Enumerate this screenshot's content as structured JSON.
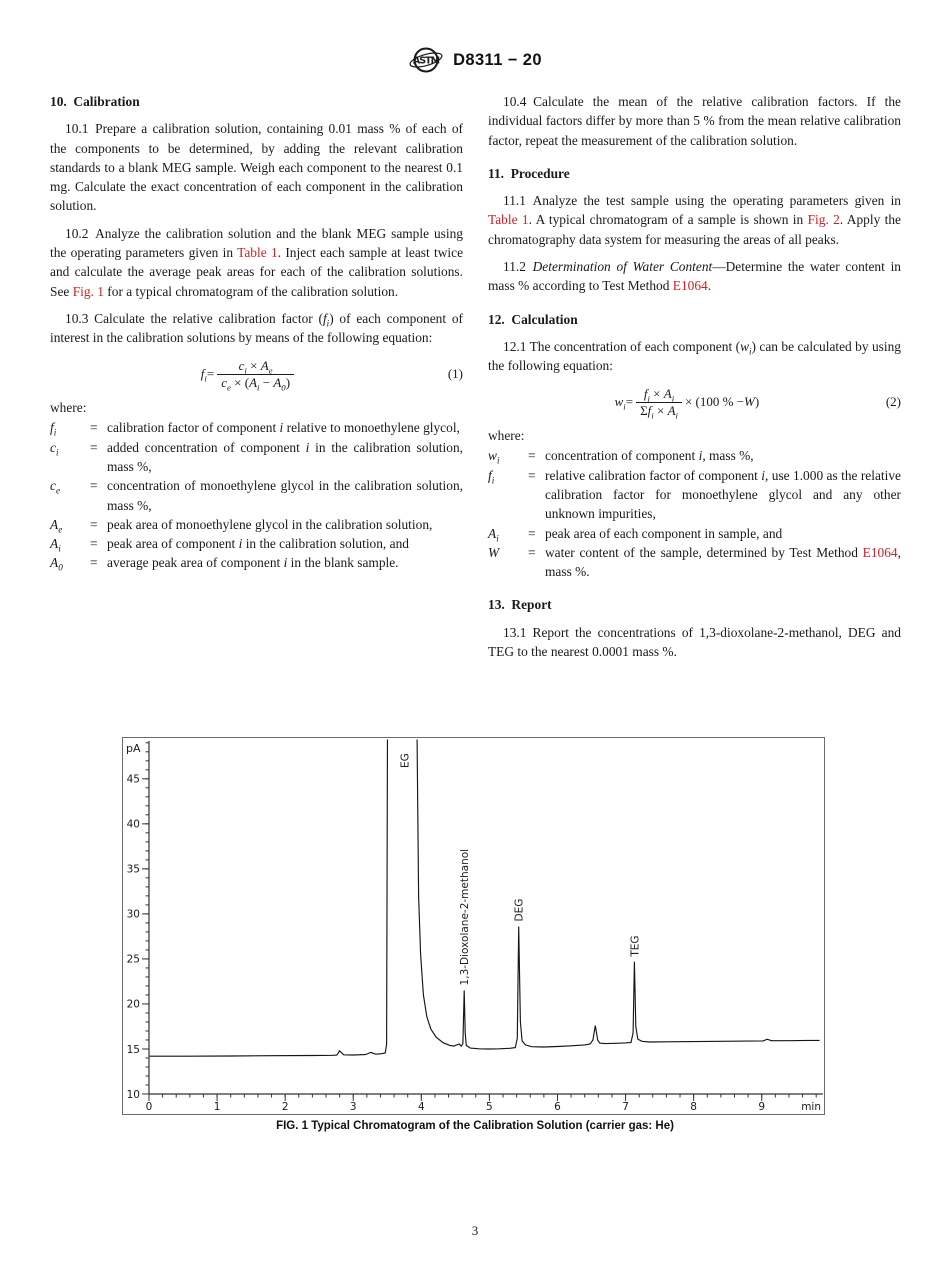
{
  "accent_color": "#cc2128",
  "header": {
    "logo_text": "ASTM",
    "doc_code": "D8311 − 20"
  },
  "footer": {
    "page_number": "3"
  },
  "columns": {
    "left": [
      {
        "type": "heading",
        "first": true,
        "text": "10. Calibration"
      },
      {
        "type": "para",
        "segments": [
          {
            "t": "10.1 Prepare a calibration solution, containing 0.01 mass % of each of the components to be determined, by adding the relevant calibration standards to a blank MEG sample. Weigh each component to the nearest 0.1 mg. Calculate the exact concentration of each component in the calibration solution."
          }
        ]
      },
      {
        "type": "para",
        "segments": [
          {
            "t": "10.2 Analyze the calibration solution and the blank MEG sample using the operating parameters given in "
          },
          {
            "t": "Table 1",
            "l": true
          },
          {
            "t": ". Inject each sample at least twice and calculate the average peak areas for each of the calibration solutions. See "
          },
          {
            "t": "Fig. 1",
            "l": true
          },
          {
            "t": " for a typical chromatogram of the calibration solution."
          }
        ]
      },
      {
        "type": "para",
        "segments": [
          {
            "t": "10.3 Calculate the relative calibration factor ("
          },
          {
            "t": "f",
            "i": true,
            "sub": "i"
          },
          {
            "t": ") of each component of interest in the calibration solutions by means of the following equation:"
          }
        ]
      },
      {
        "type": "equation",
        "label": "(1)",
        "lhs": [
          {
            "t": "f",
            "i": true,
            "sub": "i"
          },
          {
            "t": " = "
          }
        ],
        "num": [
          {
            "t": "c",
            "i": true,
            "sub": "i"
          },
          {
            "t": " × "
          },
          {
            "t": "A",
            "i": true,
            "sub": "e"
          }
        ],
        "den": [
          {
            "t": "c",
            "i": true,
            "sub": "e"
          },
          {
            "t": " × ("
          },
          {
            "t": "A",
            "i": true,
            "sub": "i"
          },
          {
            "t": " − "
          },
          {
            "t": "A",
            "i": true,
            "sub": "0"
          },
          {
            "t": ")"
          }
        ],
        "tail": []
      },
      {
        "type": "plain",
        "text": "where:"
      },
      {
        "type": "where",
        "items": [
          {
            "sym": [
              {
                "t": "f",
                "i": true,
                "sub": "i"
              }
            ],
            "desc": [
              {
                "t": "calibration factor of component "
              },
              {
                "t": "i",
                "i": true
              },
              {
                "t": " relative to monoethylene glycol,"
              }
            ]
          },
          {
            "sym": [
              {
                "t": "c",
                "i": true,
                "sub": "i"
              }
            ],
            "desc": [
              {
                "t": "added concentration of component "
              },
              {
                "t": "i",
                "i": true
              },
              {
                "t": " in the calibration solution, mass %,"
              }
            ]
          },
          {
            "sym": [
              {
                "t": "c",
                "i": true,
                "sub": "e"
              }
            ],
            "desc": [
              {
                "t": "concentration of monoethylene glycol in the calibration solution, mass %,"
              }
            ]
          },
          {
            "sym": [
              {
                "t": "A",
                "i": true,
                "sub": "e"
              }
            ],
            "desc": [
              {
                "t": "peak area of monoethylene glycol in the calibration solution,"
              }
            ]
          },
          {
            "sym": [
              {
                "t": "A",
                "i": true,
                "sub": "i"
              }
            ],
            "desc": [
              {
                "t": "peak area of component "
              },
              {
                "t": "i",
                "i": true
              },
              {
                "t": " in the calibration solution, and"
              }
            ]
          },
          {
            "sym": [
              {
                "t": "A",
                "i": true,
                "sub": "0"
              }
            ],
            "desc": [
              {
                "t": "average peak area of component "
              },
              {
                "t": "i",
                "i": true
              },
              {
                "t": " in the blank sample."
              }
            ]
          }
        ]
      }
    ],
    "right": [
      {
        "type": "para",
        "first": true,
        "segments": [
          {
            "t": "10.4 Calculate the mean of the relative calibration factors. If the individual factors differ by more than 5 % from the mean relative calibration factor, repeat the measurement of the calibration solution."
          }
        ]
      },
      {
        "type": "heading",
        "text": "11. Procedure"
      },
      {
        "type": "para",
        "segments": [
          {
            "t": "11.1 Analyze the test sample using the operating parameters given in "
          },
          {
            "t": "Table 1",
            "l": true
          },
          {
            "t": ". A typical chromatogram of a sample is shown in "
          },
          {
            "t": "Fig. 2",
            "l": true
          },
          {
            "t": ". Apply the chromatography data system for measuring the areas of all peaks."
          }
        ]
      },
      {
        "type": "para",
        "segments": [
          {
            "t": "11.2 "
          },
          {
            "t": "Determination of Water Content",
            "i": true
          },
          {
            "t": "—Determine the water content in mass % according to Test Method "
          },
          {
            "t": "E1064",
            "l": true
          },
          {
            "t": "."
          }
        ]
      },
      {
        "type": "heading",
        "text": "12. Calculation"
      },
      {
        "type": "para",
        "segments": [
          {
            "t": "12.1 The concentration of each component ("
          },
          {
            "t": "w",
            "i": true,
            "sub": "i"
          },
          {
            "t": ") can be calculated by using the following equation:"
          }
        ]
      },
      {
        "type": "equation",
        "label": "(2)",
        "lhs": [
          {
            "t": "w",
            "i": true,
            "sub": "i"
          },
          {
            "t": " = "
          }
        ],
        "num": [
          {
            "t": "f",
            "i": true,
            "sub": "i"
          },
          {
            "t": " × "
          },
          {
            "t": "A",
            "i": true,
            "sub": "i"
          }
        ],
        "den": [
          {
            "t": "Σ"
          },
          {
            "t": "f",
            "i": true,
            "sub": "i"
          },
          {
            "t": " × "
          },
          {
            "t": "A",
            "i": true,
            "sub": "i"
          }
        ],
        "tail": [
          {
            "t": " × (100 % − "
          },
          {
            "t": "W",
            "i": true
          },
          {
            "t": ")"
          }
        ]
      },
      {
        "type": "plain",
        "text": "where:"
      },
      {
        "type": "where",
        "items": [
          {
            "sym": [
              {
                "t": "w",
                "i": true,
                "sub": "i"
              }
            ],
            "desc": [
              {
                "t": "concentration of component "
              },
              {
                "t": "i",
                "i": true
              },
              {
                "t": ", mass %,"
              }
            ]
          },
          {
            "sym": [
              {
                "t": "f",
                "i": true,
                "sub": "i"
              }
            ],
            "desc": [
              {
                "t": "relative calibration factor of component "
              },
              {
                "t": "i",
                "i": true
              },
              {
                "t": ", use 1.000 as the relative calibration factor for monoethylene glycol and any other unknown impurities,"
              }
            ]
          },
          {
            "sym": [
              {
                "t": "A",
                "i": true,
                "sub": "i"
              }
            ],
            "desc": [
              {
                "t": "peak area of each component in sample, and"
              }
            ]
          },
          {
            "sym": [
              {
                "t": "W",
                "i": true
              }
            ],
            "desc": [
              {
                "t": "water content of the sample, determined by Test Method "
              },
              {
                "t": "E1064",
                "l": true
              },
              {
                "t": ", mass %."
              }
            ]
          }
        ]
      },
      {
        "type": "heading",
        "text": "13. Report"
      },
      {
        "type": "para",
        "segments": [
          {
            "t": "13.1 Report the concentrations of 1,3-dioxolane-2-methanol, DEG and TEG to the nearest 0.0001 mass %."
          }
        ]
      }
    ]
  },
  "figure": {
    "caption": "FIG. 1 Typical Chromatogram of the Calibration Solution (carrier gas: He)",
    "chart_data": {
      "type": "line",
      "title": "Typical Chromatogram of the Calibration Solution (carrier gas: He)",
      "ylabel": "pA",
      "xlabel": "min",
      "xlim": [
        0,
        9.9
      ],
      "ylim": [
        10,
        49.2
      ],
      "x_major_ticks": [
        0,
        1,
        2,
        3,
        4,
        5,
        6,
        7,
        8,
        9
      ],
      "y_major_ticks": [
        10,
        15,
        20,
        25,
        30,
        35,
        40,
        45
      ],
      "x_minor_step": 0.2,
      "y_minor_step": 1,
      "grid": false,
      "legend": "none",
      "line_color": "#161616",
      "peaks": [
        {
          "label": "EG",
          "t": 3.75,
          "apex_pA": 49.2,
          "clipped": true
        },
        {
          "label": "1,3-Dioxolane-2-methanol",
          "t": 4.63,
          "apex_pA": 21.5
        },
        {
          "label": "DEG",
          "t": 5.43,
          "apex_pA": 28.6
        },
        {
          "label": "TEG",
          "t": 7.13,
          "apex_pA": 24.7
        }
      ],
      "trace": [
        [
          0,
          14.2
        ],
        [
          0.6,
          14.2
        ],
        [
          1.2,
          14.22
        ],
        [
          1.8,
          14.25
        ],
        [
          2.4,
          14.28
        ],
        [
          2.7,
          14.3
        ],
        [
          2.76,
          14.32
        ],
        [
          2.8,
          14.8
        ],
        [
          2.86,
          14.35
        ],
        [
          3.0,
          14.33
        ],
        [
          3.18,
          14.38
        ],
        [
          3.26,
          14.62
        ],
        [
          3.33,
          14.42
        ],
        [
          3.42,
          14.48
        ],
        [
          3.47,
          14.55
        ],
        [
          3.49,
          15.5
        ],
        [
          3.505,
          55
        ],
        [
          3.93,
          55
        ],
        [
          3.96,
          32
        ],
        [
          3.99,
          25.5
        ],
        [
          4.03,
          21
        ],
        [
          4.08,
          18.6
        ],
        [
          4.14,
          17.2
        ],
        [
          4.22,
          16.3
        ],
        [
          4.32,
          15.7
        ],
        [
          4.42,
          15.4
        ],
        [
          4.48,
          15.32
        ],
        [
          4.52,
          15.45
        ],
        [
          4.56,
          15.55
        ],
        [
          4.585,
          15.3
        ],
        [
          4.61,
          15.6
        ],
        [
          4.63,
          21.5
        ],
        [
          4.645,
          16.8
        ],
        [
          4.66,
          15.4
        ],
        [
          4.72,
          15.1
        ],
        [
          4.85,
          15.02
        ],
        [
          5.0,
          15.0
        ],
        [
          5.15,
          15.02
        ],
        [
          5.3,
          15.08
        ],
        [
          5.38,
          15.15
        ],
        [
          5.41,
          16.2
        ],
        [
          5.43,
          28.6
        ],
        [
          5.455,
          18
        ],
        [
          5.48,
          15.9
        ],
        [
          5.53,
          15.45
        ],
        [
          5.62,
          15.25
        ],
        [
          5.8,
          15.22
        ],
        [
          6.0,
          15.28
        ],
        [
          6.2,
          15.35
        ],
        [
          6.4,
          15.45
        ],
        [
          6.48,
          15.55
        ],
        [
          6.52,
          16.0
        ],
        [
          6.555,
          17.6
        ],
        [
          6.59,
          16.0
        ],
        [
          6.62,
          15.65
        ],
        [
          6.7,
          15.6
        ],
        [
          6.85,
          15.63
        ],
        [
          7.0,
          15.68
        ],
        [
          7.08,
          15.72
        ],
        [
          7.11,
          16.8
        ],
        [
          7.13,
          24.7
        ],
        [
          7.15,
          17.5
        ],
        [
          7.18,
          16.1
        ],
        [
          7.24,
          15.85
        ],
        [
          7.35,
          15.78
        ],
        [
          7.6,
          15.8
        ],
        [
          8.0,
          15.82
        ],
        [
          8.4,
          15.85
        ],
        [
          8.8,
          15.88
        ],
        [
          9.02,
          15.9
        ],
        [
          9.08,
          16.08
        ],
        [
          9.14,
          15.92
        ],
        [
          9.4,
          15.92
        ],
        [
          9.7,
          15.95
        ],
        [
          9.85,
          15.95
        ]
      ]
    }
  }
}
